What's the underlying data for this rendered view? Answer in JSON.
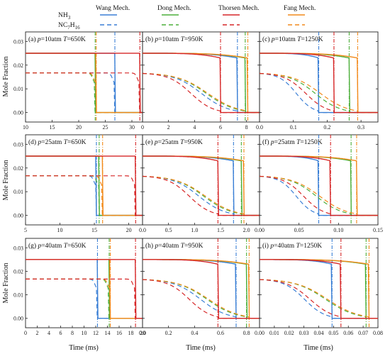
{
  "legend": {
    "mechanisms": [
      {
        "name": "Wang Mech.",
        "color": "#3a7fd5"
      },
      {
        "name": "Dong Mech.",
        "color": "#4caf3a"
      },
      {
        "name": "Thorsen Mech.",
        "color": "#d62728"
      },
      {
        "name": "Fang Mech.",
        "color": "#f28a1b"
      }
    ],
    "species": [
      {
        "name": "NH3",
        "label_main": "NH",
        "label_sub": "3",
        "style": "solid"
      },
      {
        "name": "NC7H16",
        "label_main": "NC",
        "label_sub": "7",
        "label_main2": "H",
        "label_sub2": "16",
        "style": "dashed"
      }
    ]
  },
  "axes_titles": {
    "ylabel": "Mole Fraction",
    "xlabel": "Time (ms)"
  },
  "chart_data": [
    {
      "type": "line",
      "label": "(a)",
      "p": "10atm",
      "T": "650K",
      "xlim": [
        10,
        32
      ],
      "xticks": [
        10,
        15,
        20,
        25,
        30
      ],
      "ylim": [
        -0.004,
        0.034
      ],
      "yticks": [
        0.0,
        0.01,
        0.02,
        0.03
      ],
      "nh3_init": 0.025,
      "nc7_init": 0.0167,
      "ign": {
        "Wang": 26.8,
        "Dong": 23.1,
        "Thorsen": 31.5,
        "Fang": 23.3
      }
    },
    {
      "type": "line",
      "label": "(b)",
      "p": "10atm",
      "T": "950K",
      "xlim": [
        0,
        9
      ],
      "xticks": [
        0,
        2,
        4,
        6,
        8
      ],
      "ylim": [
        -0.004,
        0.034
      ],
      "yticks": [
        0.0,
        0.01,
        0.02,
        0.03
      ],
      "nh3_init": 0.025,
      "nc7_init": 0.0167,
      "ign": {
        "Wang": 7.3,
        "Dong": 7.9,
        "Thorsen": 6.0,
        "Fang": 8.1
      }
    },
    {
      "type": "line",
      "label": "(c)",
      "p": "10atm",
      "T": "1250K",
      "xlim": [
        0,
        0.35
      ],
      "xticks": [
        0.0,
        0.1,
        0.2,
        0.3
      ],
      "ylim": [
        -0.004,
        0.034
      ],
      "yticks": [
        0.0,
        0.01,
        0.02,
        0.03
      ],
      "nh3_init": 0.025,
      "nc7_init": 0.0167,
      "ign": {
        "Wang": 0.175,
        "Dong": 0.265,
        "Thorsen": 0.22,
        "Fang": 0.29
      }
    },
    {
      "type": "line",
      "label": "(d)",
      "p": "25atm",
      "T": "650K",
      "xlim": [
        5,
        22
      ],
      "xticks": [
        5,
        10,
        15,
        20
      ],
      "ylim": [
        -0.004,
        0.034
      ],
      "yticks": [
        0.0,
        0.01,
        0.02,
        0.03
      ],
      "nh3_init": 0.025,
      "nc7_init": 0.0167,
      "ign": {
        "Wang": 15.3,
        "Dong": 15.7,
        "Thorsen": 21.0,
        "Fang": 16.2
      }
    },
    {
      "type": "line",
      "label": "(e)",
      "p": "25atm",
      "T": "950K",
      "xlim": [
        0,
        2.25
      ],
      "xticks": [
        0.0,
        0.5,
        1.0,
        1.5,
        2.0
      ],
      "ylim": [
        -0.004,
        0.034
      ],
      "yticks": [
        0.0,
        0.01,
        0.02,
        0.03
      ],
      "nh3_init": 0.025,
      "nc7_init": 0.0167,
      "ign": {
        "Wang": 1.75,
        "Dong": 1.9,
        "Thorsen": 1.45,
        "Fang": 1.95
      }
    },
    {
      "type": "line",
      "label": "(f)",
      "p": "25atm",
      "T": "1250K",
      "xlim": [
        0,
        0.15
      ],
      "xticks": [
        0.0,
        0.05,
        0.1,
        0.15
      ],
      "ylim": [
        -0.004,
        0.034
      ],
      "yticks": [
        0.0,
        0.01,
        0.02,
        0.03
      ],
      "nh3_init": 0.025,
      "nc7_init": 0.0167,
      "ign": {
        "Wang": 0.075,
        "Dong": 0.116,
        "Thorsen": 0.09,
        "Fang": 0.123
      }
    },
    {
      "type": "line",
      "label": "(g)",
      "p": "40atm",
      "T": "650K",
      "xlim": [
        0,
        20
      ],
      "xticks": [
        0,
        2,
        4,
        6,
        8,
        10,
        12,
        14,
        16,
        18,
        20
      ],
      "ylim": [
        -0.004,
        0.034
      ],
      "yticks": [
        0.0,
        0.01,
        0.02,
        0.03
      ],
      "nh3_init": 0.025,
      "nc7_init": 0.0167,
      "ign": {
        "Wang": 12.3,
        "Dong": 14.3,
        "Thorsen": 18.8,
        "Fang": 14.5
      }
    },
    {
      "type": "line",
      "label": "(h)",
      "p": "40atm",
      "T": "950K",
      "xlim": [
        0,
        0.9
      ],
      "xticks": [
        0.0,
        0.2,
        0.4,
        0.6,
        0.8
      ],
      "ylim": [
        -0.004,
        0.034
      ],
      "yticks": [
        0.0,
        0.01,
        0.02,
        0.03
      ],
      "nh3_init": 0.025,
      "nc7_init": 0.0167,
      "ign": {
        "Wang": 0.72,
        "Dong": 0.8,
        "Thorsen": 0.58,
        "Fang": 0.82
      }
    },
    {
      "type": "line",
      "label": "(i)",
      "p": "40atm",
      "T": "1250K",
      "xlim": [
        0,
        0.08
      ],
      "xticks": [
        0.0,
        0.01,
        0.02,
        0.03,
        0.04,
        0.05,
        0.06,
        0.07,
        0.08
      ],
      "ylim": [
        -0.004,
        0.034
      ],
      "yticks": [
        0.0,
        0.01,
        0.02,
        0.03
      ],
      "nh3_init": 0.025,
      "nc7_init": 0.0167,
      "ign": {
        "Wang": 0.049,
        "Dong": 0.072,
        "Thorsen": 0.055,
        "Fang": 0.074
      }
    }
  ],
  "xtick_labels": [
    [
      "10",
      "15",
      "20",
      "25",
      "30"
    ],
    [
      "0",
      "2",
      "4",
      "6",
      "8"
    ],
    [
      "0.0",
      "0.1",
      "0.2",
      "0.3"
    ],
    [
      "5",
      "10",
      "15",
      "20"
    ],
    [
      "0.0",
      "0.5",
      "1.0",
      "1.5",
      "2.0"
    ],
    [
      "0.00",
      "0.05",
      "0.10",
      "0.15"
    ],
    [
      "0",
      "2",
      "4",
      "6",
      "8",
      "10",
      "12",
      "14",
      "16",
      "18",
      "20"
    ],
    [
      "0.0",
      "0.2",
      "0.4",
      "0.6",
      "0.8"
    ],
    [
      "0.00",
      "0.01",
      "0.02",
      "0.03",
      "0.04",
      "0.05",
      "0.06",
      "0.07",
      "0.08"
    ]
  ],
  "ytick_labels": [
    "0.00",
    "0.01",
    "0.02",
    "0.03"
  ]
}
